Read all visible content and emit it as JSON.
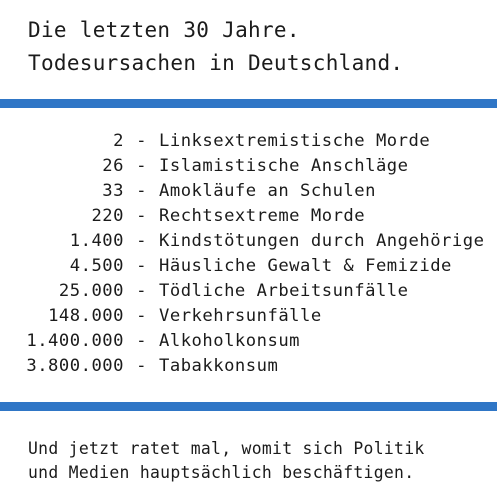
{
  "header": {
    "line1": "Die letzten 30 Jahre.",
    "line2": "Todesursachen in Deutschland."
  },
  "accent_color": "#2f76c6",
  "dash": "-",
  "rows": [
    {
      "value": "2",
      "label": "Linksextremistische Morde"
    },
    {
      "value": "26",
      "label": "Islamistische Anschläge"
    },
    {
      "value": "33",
      "label": "Amokläufe an Schulen"
    },
    {
      "value": "220",
      "label": "Rechtsextreme Morde"
    },
    {
      "value": "1.400",
      "label": "Kindstötungen durch Angehörige"
    },
    {
      "value": "4.500",
      "label": "Häusliche Gewalt & Femizide"
    },
    {
      "value": "25.000",
      "label": "Tödliche Arbeitsunfälle"
    },
    {
      "value": "148.000",
      "label": "Verkehrsunfälle"
    },
    {
      "value": "1.400.000",
      "label": "Alkoholkonsum"
    },
    {
      "value": "3.800.000",
      "label": "Tabakkonsum"
    }
  ],
  "footer": {
    "line1": "Und jetzt ratet mal, womit sich Politik",
    "line2": "und Medien hauptsächlich beschäftigen."
  }
}
